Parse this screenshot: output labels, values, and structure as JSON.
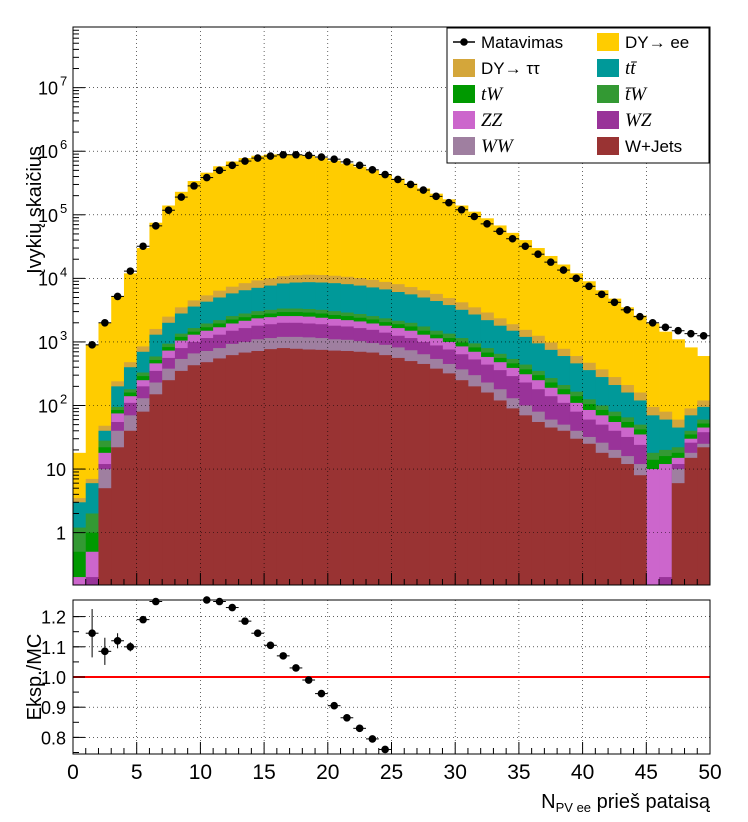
{
  "chart_data": [
    {
      "panel": "main",
      "type": "stacked_histogram_with_points",
      "ylabel": "Įvykių skaičius",
      "y_scale": "log",
      "xlim": [
        0,
        50
      ],
      "ylim": [
        0.15,
        90000000
      ],
      "grid": true,
      "legend_position": "top-right",
      "x_edges": [
        0,
        1,
        2,
        3,
        4,
        5,
        6,
        7,
        8,
        9,
        10,
        11,
        12,
        13,
        14,
        15,
        16,
        17,
        18,
        19,
        20,
        21,
        22,
        23,
        24,
        25,
        26,
        27,
        28,
        29,
        30,
        31,
        32,
        33,
        34,
        35,
        36,
        37,
        38,
        39,
        40,
        41,
        42,
        43,
        44,
        45,
        46,
        47,
        48,
        49,
        50
      ],
      "y_tick_labels": [
        {
          "value": 1,
          "label": "1"
        },
        {
          "value": 10,
          "label": "10"
        },
        {
          "value": 100,
          "label": "10",
          "exp": "2"
        },
        {
          "value": 1000,
          "label": "10",
          "exp": "3"
        },
        {
          "value": 10000,
          "label": "10",
          "exp": "4"
        },
        {
          "value": 100000,
          "label": "10",
          "exp": "5"
        },
        {
          "value": 1000000,
          "label": "10",
          "exp": "6"
        },
        {
          "value": 10000000,
          "label": "10",
          "exp": "7"
        }
      ],
      "stack_boundaries": {
        "names": [
          "W+Jets",
          "WW",
          "WZ",
          "ZZ",
          "tW",
          "tbarW",
          "ttbar",
          "DY->tautau",
          "DY->ee"
        ],
        "W+Jets": [
          0.15,
          0.15,
          5,
          22,
          40,
          80,
          150,
          250,
          350,
          430,
          480,
          550,
          620,
          680,
          720,
          770,
          800,
          780,
          760,
          750,
          730,
          720,
          700,
          680,
          620,
          560,
          500,
          450,
          380,
          320,
          250,
          200,
          160,
          120,
          90,
          70,
          55,
          45,
          40,
          30,
          25,
          18,
          15,
          12,
          8,
          0.15,
          0.15,
          6,
          15,
          22
        ],
        "WW": [
          0.15,
          0.15,
          10,
          40,
          70,
          130,
          230,
          380,
          540,
          660,
          720,
          800,
          930,
          1000,
          1100,
          1150,
          1200,
          1200,
          1180,
          1150,
          1100,
          1080,
          1030,
          960,
          900,
          820,
          740,
          640,
          540,
          450,
          370,
          300,
          230,
          180,
          130,
          100,
          80,
          60,
          50,
          40,
          32,
          26,
          20,
          16,
          12,
          0.15,
          0.15,
          10,
          18,
          25
        ],
        "WZ": [
          0.15,
          0.2,
          12,
          55,
          110,
          200,
          350,
          560,
          800,
          1000,
          1150,
          1300,
          1500,
          1650,
          1800,
          1900,
          2000,
          2000,
          1950,
          1900,
          1800,
          1750,
          1650,
          1550,
          1400,
          1250,
          1150,
          1000,
          880,
          760,
          640,
          530,
          440,
          360,
          290,
          230,
          180,
          140,
          110,
          80,
          60,
          50,
          40,
          32,
          24,
          0.15,
          0.2,
          12,
          26,
          38
        ],
        "ZZ": [
          0.2,
          0.5,
          18,
          75,
          140,
          250,
          460,
          730,
          1050,
          1300,
          1500,
          1700,
          1950,
          2150,
          2350,
          2450,
          2550,
          2550,
          2500,
          2400,
          2300,
          2200,
          2100,
          1950,
          1800,
          1650,
          1500,
          1300,
          1140,
          1000,
          850,
          700,
          580,
          480,
          390,
          310,
          250,
          190,
          150,
          110,
          85,
          70,
          55,
          45,
          35,
          10,
          12,
          15,
          30,
          45
        ],
        "tW": [
          0.5,
          1,
          22,
          85,
          160,
          290,
          520,
          830,
          1200,
          1450,
          1700,
          1950,
          2250,
          2450,
          2650,
          2800,
          2950,
          2950,
          2900,
          2800,
          2650,
          2550,
          2400,
          2250,
          2050,
          1900,
          1750,
          1500,
          1300,
          1150,
          980,
          820,
          680,
          560,
          460,
          370,
          300,
          230,
          180,
          140,
          105,
          85,
          68,
          55,
          42,
          14,
          16,
          18,
          35,
          52
        ],
        "tbarW": [
          1.2,
          2,
          28,
          95,
          180,
          330,
          590,
          940,
          1350,
          1650,
          1950,
          2200,
          2550,
          2800,
          3050,
          3200,
          3350,
          3350,
          3300,
          3200,
          3050,
          2900,
          2750,
          2550,
          2350,
          2150,
          2000,
          1750,
          1500,
          1350,
          1150,
          950,
          800,
          650,
          540,
          440,
          350,
          270,
          210,
          165,
          125,
          100,
          80,
          65,
          50,
          18,
          20,
          22,
          40,
          60
        ],
        "ttbar": [
          3,
          6,
          40,
          200,
          400,
          700,
          1300,
          2000,
          2800,
          3600,
          4300,
          5000,
          5800,
          6500,
          7100,
          7700,
          8300,
          8600,
          8700,
          8600,
          8400,
          8100,
          7700,
          7200,
          6700,
          6100,
          5600,
          5000,
          4400,
          3800,
          3200,
          2700,
          2200,
          1800,
          1500,
          1200,
          950,
          750,
          600,
          460,
          360,
          280,
          210,
          160,
          120,
          70,
          60,
          45,
          70,
          95
        ],
        "DY->tautau": [
          3.5,
          7,
          48,
          240,
          480,
          850,
          1600,
          2500,
          3500,
          4500,
          5400,
          6400,
          7400,
          8400,
          9300,
          10000,
          10800,
          11200,
          11400,
          11300,
          11000,
          10600,
          10100,
          9500,
          8800,
          8100,
          7300,
          6500,
          5700,
          4900,
          4200,
          3500,
          2900,
          2350,
          1900,
          1550,
          1250,
          980,
          780,
          600,
          470,
          370,
          280,
          210,
          160,
          95,
          80,
          60,
          90,
          120
        ],
        "DY->ee": [
          18,
          900,
          2000,
          5200,
          12000,
          30000,
          75000,
          140000,
          230000,
          340000,
          460000,
          580000,
          690000,
          780000,
          850000,
          890000,
          900000,
          880000,
          840000,
          780000,
          710000,
          640000,
          570000,
          500000,
          430000,
          370000,
          310000,
          260000,
          215000,
          175000,
          140000,
          112000,
          88000,
          68000,
          52000,
          40000,
          30000,
          22500,
          16500,
          12000,
          9000,
          6500,
          4800,
          3500,
          2600,
          1950,
          1450,
          1100,
          820,
          600
        ]
      },
      "data_points": {
        "x": [
          1.5,
          2.5,
          3.5,
          4.5,
          5.5,
          6.5,
          7.5,
          8.5,
          9.5,
          10.5,
          11.5,
          12.5,
          13.5,
          14.5,
          15.5,
          16.5,
          17.5,
          18.5,
          19.5,
          20.5,
          21.5,
          22.5,
          23.5,
          24.5,
          25.5,
          26.5,
          27.5,
          28.5,
          29.5,
          30.5,
          31.5,
          32.5,
          33.5,
          34.5,
          35.5,
          36.5,
          37.5,
          38.5,
          39.5,
          40.5,
          41.5,
          42.5,
          43.5,
          44.5,
          45.5,
          46.5,
          47.5,
          48.5,
          49.5
        ],
        "y": [
          900,
          2000,
          5200,
          13000,
          32000,
          67000,
          118000,
          190000,
          285000,
          385000,
          500000,
          600000,
          700000,
          780000,
          840000,
          880000,
          880000,
          860000,
          810000,
          750000,
          680000,
          600000,
          510000,
          430000,
          360000,
          300000,
          245000,
          195000,
          155000,
          120000,
          94000,
          72000,
          55000,
          42000,
          32000,
          24000,
          18000,
          13500,
          10000,
          7500,
          5600,
          4200,
          3200,
          2500,
          2000,
          1700,
          1500,
          1350,
          1250
        ]
      },
      "legend": [
        {
          "key": "data",
          "label": "Matavimas",
          "color": "#000000"
        },
        {
          "key": "dyee",
          "label": "DY→ ee",
          "color": "#FFCC00"
        },
        {
          "key": "dytt",
          "label": "DY→ ττ",
          "color": "#D4A63A"
        },
        {
          "key": "ttbar",
          "label": "tt̄",
          "color": "#009999"
        },
        {
          "key": "tw",
          "label": "tW",
          "color": "#009900"
        },
        {
          "key": "tbarw",
          "label": "t̄W",
          "color": "#339933"
        },
        {
          "key": "zz",
          "label": "ZZ",
          "color": "#CC66CC"
        },
        {
          "key": "wz",
          "label": "WZ",
          "color": "#993399"
        },
        {
          "key": "ww",
          "label": "WW",
          "color": "#9F7FA0"
        },
        {
          "key": "wjets",
          "label": "W+Jets",
          "color": "#993333"
        }
      ]
    },
    {
      "panel": "ratio",
      "type": "scatter_errorbar",
      "xlabel": "N",
      "xlabel_sub": "PV ee",
      "xlabel_rest": " prieš pataisą",
      "ylabel": "Eksp./MC",
      "xlim": [
        0,
        50
      ],
      "ylim": [
        0.75,
        1.25
      ],
      "reference_line": 1.0,
      "x_tick_labels": [
        "0",
        "5",
        "10",
        "15",
        "20",
        "25",
        "30",
        "35",
        "40",
        "45",
        "50"
      ],
      "y_tick_labels": [
        "0.8",
        "0.9",
        "1.0",
        "1.1",
        "1.2"
      ],
      "x": [
        1.5,
        2.5,
        3.5,
        4.5,
        5.5,
        6.5,
        10.5,
        11.5,
        12.5,
        13.5,
        14.5,
        15.5,
        16.5,
        17.5,
        18.5,
        19.5,
        20.5,
        21.5,
        22.5,
        23.5,
        24.5
      ],
      "y": [
        1.145,
        1.085,
        1.12,
        1.1,
        1.19,
        1.25,
        1.27,
        1.25,
        1.23,
        1.185,
        1.145,
        1.105,
        1.07,
        1.03,
        0.99,
        0.945,
        0.905,
        0.865,
        0.83,
        0.795,
        0.76
      ],
      "yerr": [
        0.08,
        0.045,
        0.025,
        0.015,
        0.01,
        0.005,
        0.003,
        0.003,
        0.003,
        0.003,
        0.003,
        0.003,
        0.003,
        0.003,
        0.003,
        0.003,
        0.003,
        0.003,
        0.003,
        0.003,
        0.003
      ]
    }
  ]
}
